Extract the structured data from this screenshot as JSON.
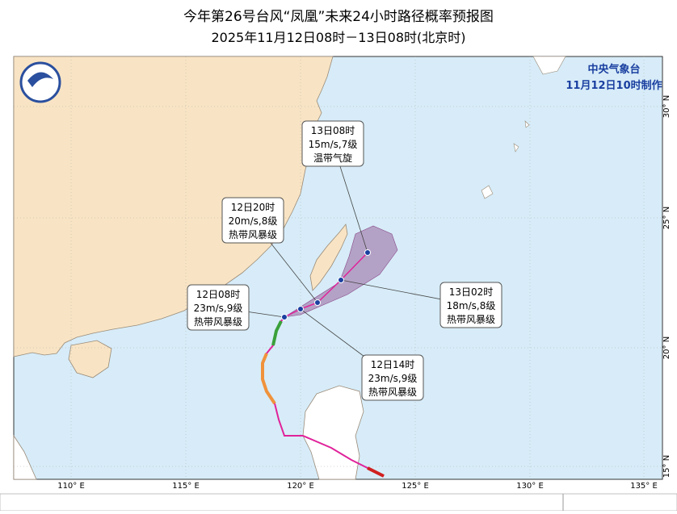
{
  "header": {
    "title": "今年第26号台风“凤凰”未来24小时路径概率预报图",
    "subtitle": "2025年11月12日08时－13日08时(北京时)"
  },
  "agency": "中央气象台",
  "issued": "11月12日10时制作",
  "forecast": [
    {
      "time": "12日08时",
      "wind": "23m/s,9级",
      "grade": "热带风暴级"
    },
    {
      "time": "12日14时",
      "wind": "23m/s,9级",
      "grade": "热带风暴级"
    },
    {
      "time": "12日20时",
      "wind": "20m/s,8级",
      "grade": "热带风暴级"
    },
    {
      "time": "13日02时",
      "wind": "18m/s,8级",
      "grade": "热带风暴级"
    },
    {
      "time": "13日08时",
      "wind": "15m/s,7级",
      "grade": "温带气旋"
    }
  ],
  "longitude_labels": [
    "110° E",
    "115° E",
    "120° E",
    "125° E",
    "130° E",
    "135° E"
  ],
  "latitude_labels": [
    "30° N",
    "25° N",
    "20° N",
    "15° N"
  ]
}
